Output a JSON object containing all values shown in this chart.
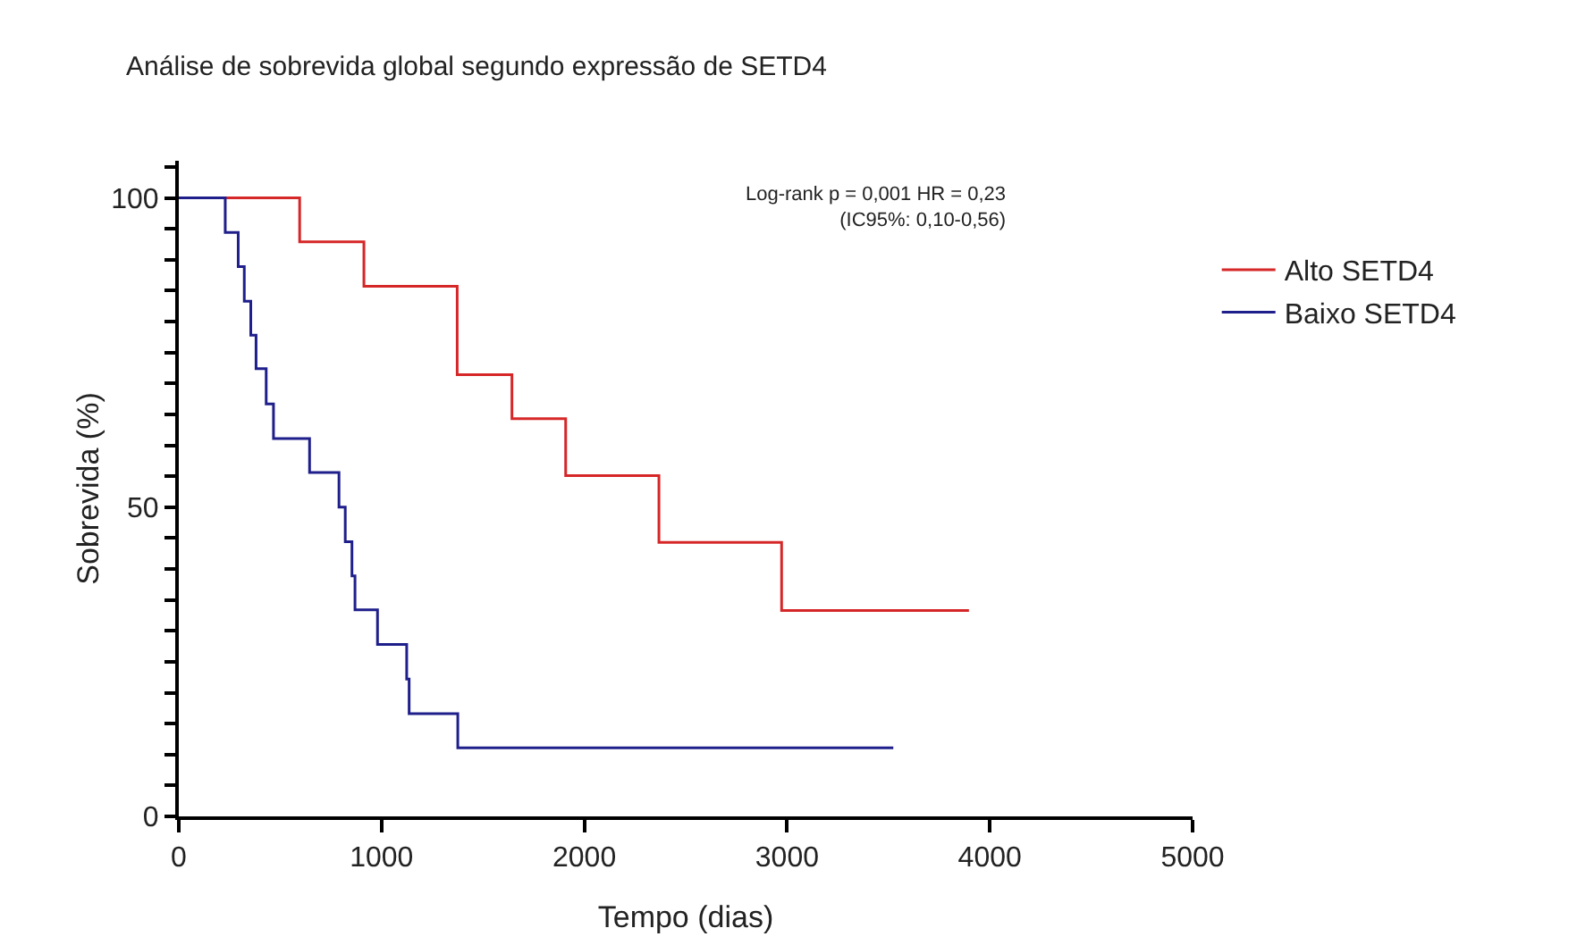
{
  "chart_data": {
    "type": "step",
    "title": "Análise de sobrevida global segundo expressão de SETD4",
    "xlabel": "Tempo (dias)",
    "ylabel": "Sobrevida (%)",
    "annotations": [
      "Log-rank p = 0,001 HR = 0,23\n(IC95%: 0,10-0,56)"
    ],
    "series": [
      {
        "name": "Alto SETD4",
        "color": "#d62728",
        "x": [
          0,
          596,
          913,
          1373,
          1643,
          1908,
          2368,
          2973,
          3897
        ],
        "values": [
          100,
          92.9,
          85.7,
          71.4,
          64.3,
          55.1,
          44.3,
          33.3,
          33.3
        ]
      },
      {
        "name": "Baixo SETD4",
        "color": "#1f1f8c",
        "x": [
          0,
          229,
          293,
          323,
          355,
          381,
          431,
          467,
          645,
          790,
          821,
          854,
          869,
          980,
          1124,
          1136,
          1376,
          3524
        ],
        "values": [
          100,
          94.4,
          88.9,
          83.3,
          77.8,
          72.4,
          66.7,
          61.1,
          55.6,
          50,
          44.4,
          38.9,
          33.4,
          27.8,
          22.2,
          16.6,
          11.1,
          11.1
        ]
      }
    ],
    "xlim": [
      0,
      5000
    ],
    "xticks": [
      0,
      1000,
      2000,
      3000,
      4000,
      5000
    ],
    "ylim": [
      0,
      106
    ],
    "yticks": [
      0,
      {
        "value": 5,
        "label": null
      },
      {
        "value": 10,
        "label": null
      },
      {
        "value": 15,
        "label": null
      },
      {
        "value": 20,
        "label": null
      },
      {
        "value": 25,
        "label": null
      },
      {
        "value": 30,
        "label": null
      },
      {
        "value": 35,
        "label": null
      },
      {
        "value": 40,
        "label": null
      },
      {
        "value": 45,
        "label": null
      },
      50,
      {
        "value": 55,
        "label": null
      },
      {
        "value": 60,
        "label": null
      },
      {
        "value": 65,
        "label": null
      },
      {
        "value": 70,
        "label": null
      },
      {
        "value": 75,
        "label": null
      },
      {
        "value": 80,
        "label": null
      },
      {
        "value": 85,
        "label": null
      },
      {
        "value": 90,
        "label": null
      },
      {
        "value": 95,
        "label": null
      },
      100,
      {
        "value": 105,
        "label": null
      }
    ],
    "grid": false,
    "legend": "right",
    "marker": "none",
    "line_style": "solid"
  }
}
